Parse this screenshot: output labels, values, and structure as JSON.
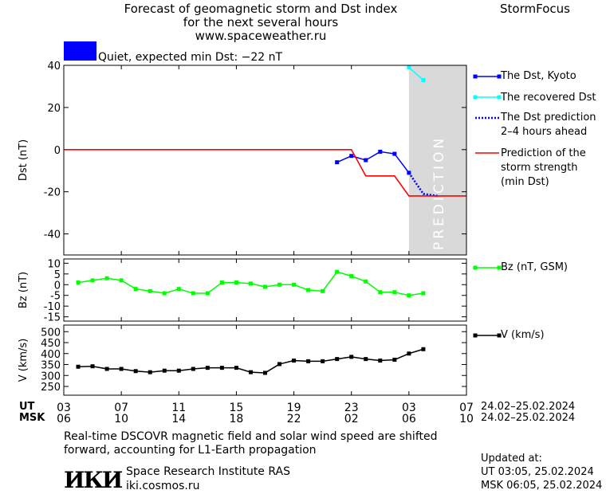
{
  "header": {
    "title_line1": "Forecast of geomagnetic storm and Dst index",
    "title_line2": "for the next several hours",
    "title_line3": "www.spaceweather.ru",
    "brand": "StormFocus",
    "status_text": "Quiet, expected min Dst: −22 nT",
    "status_color": "#0000ff"
  },
  "legend": {
    "dst_kyoto": "The Dst, Kyoto",
    "dst_recovered": "The recovered Dst",
    "dst_prediction_1": "The Dst prediction",
    "dst_prediction_2": "2–4 hours ahead",
    "storm_1": "Prediction of the",
    "storm_2": "storm strength",
    "storm_3": "(min Dst)",
    "bz": "Bz (nT, GSM)",
    "v": "V (km/s)"
  },
  "prediction_label": "PREDICTION",
  "axes": {
    "ut_label": "UT",
    "msk_label": "MSK",
    "ut_ticks": [
      "03",
      "07",
      "11",
      "15",
      "19",
      "23",
      "03",
      "07"
    ],
    "msk_ticks": [
      "06",
      "10",
      "14",
      "18",
      "22",
      "02",
      "06",
      "10"
    ],
    "ut_range": "24.02–25.02.2024",
    "msk_range": "24.02–25.02.2024"
  },
  "footer": {
    "note_line1": "Real-time DSCOVR magnetic field and solar wind speed are shifted",
    "note_line2": "forward, accounting for L1-Earth propagation",
    "institute_logo": "ИКИ",
    "institute_name": "Space Research Institute RAS",
    "institute_url": "iki.cosmos.ru",
    "updated_label": "Updated at:",
    "updated_ut": "UT   03:05, 25.02.2024",
    "updated_msk": "MSK 06:05, 25.02.2024"
  },
  "chart_data": [
    {
      "type": "line",
      "ylabel": "Dst (nT)",
      "xlim": [
        0,
        28
      ],
      "ylim": [
        -50,
        40
      ],
      "yticks": [
        40,
        20,
        0,
        -20,
        -40
      ],
      "prediction_band": [
        24,
        28
      ],
      "series": [
        {
          "name": "The Dst, Kyoto",
          "color": "#0000ff",
          "x": [
            19,
            20,
            21,
            22,
            23,
            24
          ],
          "y": [
            -6,
            -3,
            -5,
            -1,
            -2,
            -11
          ]
        },
        {
          "name": "The recovered Dst",
          "color": "#00ffff",
          "x": [
            24,
            25
          ],
          "y": [
            39,
            33
          ]
        },
        {
          "name": "The Dst prediction 2–4 hours ahead",
          "color": "#0000ff",
          "x": [
            24,
            25,
            26
          ],
          "y": [
            -11,
            -21,
            -22
          ]
        },
        {
          "name": "Prediction of the storm strength (min Dst)",
          "color": "#ff0000",
          "x": [
            0,
            20,
            21,
            23,
            24,
            28
          ],
          "y": [
            0,
            0,
            -12.5,
            -12.5,
            -22,
            -22
          ]
        }
      ]
    },
    {
      "type": "line",
      "ylabel": "Bz (nT)",
      "xlim": [
        0,
        28
      ],
      "ylim": [
        -17,
        12
      ],
      "yticks": [
        10,
        5,
        0,
        -5,
        -10,
        -15
      ],
      "series": [
        {
          "name": "Bz (nT, GSM)",
          "color": "#00ff00",
          "x": [
            1,
            2,
            3,
            4,
            5,
            6,
            7,
            8,
            9,
            10,
            11,
            12,
            13,
            14,
            15,
            16,
            17,
            18,
            19,
            20,
            21,
            22,
            23,
            24,
            25
          ],
          "y": [
            1,
            2,
            3,
            2,
            -2,
            -3,
            -4,
            -2,
            -4,
            -4,
            1,
            1,
            0.5,
            -1,
            0,
            0,
            -2.5,
            -3,
            6,
            4,
            1.5,
            -3.5,
            -3.5,
            -5,
            -4
          ]
        }
      ]
    },
    {
      "type": "line",
      "ylabel": "V (km/s)",
      "xlim": [
        0,
        28
      ],
      "ylim": [
        210,
        530
      ],
      "yticks": [
        500,
        450,
        400,
        350,
        300,
        250
      ],
      "series": [
        {
          "name": "V (km/s)",
          "color": "#000000",
          "x": [
            1,
            2,
            3,
            4,
            5,
            6,
            7,
            8,
            9,
            10,
            11,
            12,
            13,
            14,
            15,
            16,
            17,
            18,
            19,
            20,
            21,
            22,
            23,
            24,
            25
          ],
          "y": [
            340,
            342,
            330,
            330,
            320,
            315,
            322,
            322,
            330,
            335,
            335,
            335,
            315,
            312,
            352,
            368,
            365,
            365,
            375,
            385,
            375,
            368,
            372,
            400,
            420
          ]
        }
      ]
    }
  ]
}
